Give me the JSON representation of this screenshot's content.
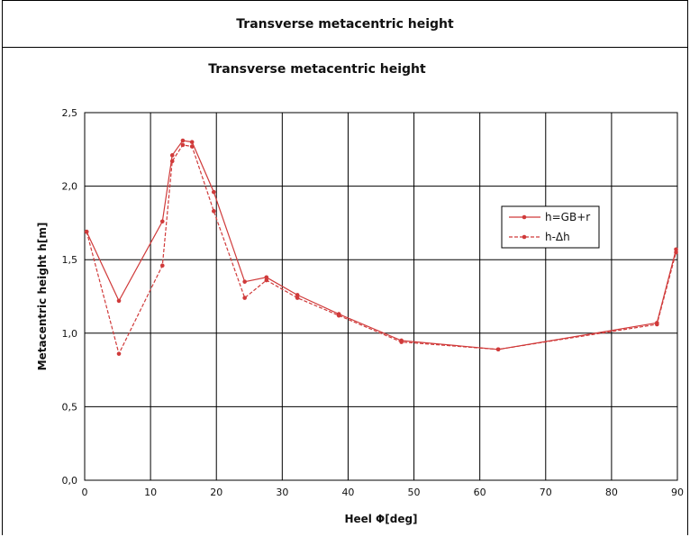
{
  "header": {
    "title": "Transverse  metacentric  height"
  },
  "chart_data": {
    "type": "line",
    "title": "Transverse  metacentric  height",
    "xlabel": "Heel Φ[deg]",
    "ylabel": "Metacentric height h[m]",
    "xlim": [
      0,
      90
    ],
    "ylim": [
      0,
      2.5
    ],
    "xticks": [
      "0",
      "10",
      "20",
      "30",
      "40",
      "50",
      "60",
      "70",
      "80",
      "90"
    ],
    "yticks": [
      "0,0",
      "0,5",
      "1,0",
      "1,5",
      "2,0",
      "2,5"
    ],
    "grid": true,
    "legend_position": "right",
    "series": [
      {
        "name": "h=GB+r",
        "color": "#d03a3a",
        "dash": "solid",
        "x": [
          0.3,
          5.2,
          11.8,
          13.3,
          14.9,
          16.3,
          19.6,
          24.3,
          27.6,
          32.3,
          38.6,
          48.1,
          62.8,
          86.9,
          89.8
        ],
        "y": [
          1.69,
          1.22,
          1.76,
          2.21,
          2.31,
          2.3,
          1.96,
          1.35,
          1.38,
          1.26,
          1.13,
          0.95,
          0.89,
          1.07,
          1.57
        ]
      },
      {
        "name": "h-Δh",
        "color": "#d03a3a",
        "dash": "dashed",
        "x": [
          0.3,
          5.2,
          11.8,
          13.3,
          14.9,
          16.3,
          19.6,
          24.3,
          27.6,
          32.3,
          38.6,
          48.1,
          62.8,
          86.9,
          89.8
        ],
        "y": [
          1.69,
          0.86,
          1.46,
          2.17,
          2.28,
          2.27,
          1.83,
          1.24,
          1.36,
          1.24,
          1.12,
          0.94,
          0.89,
          1.06,
          1.55
        ]
      }
    ]
  }
}
